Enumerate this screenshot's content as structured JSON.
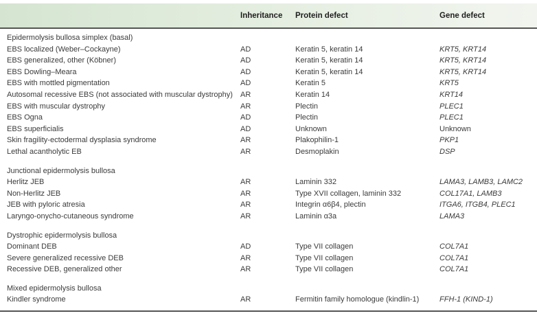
{
  "table": {
    "columns": [
      "",
      "Inheritance",
      "Protein defect",
      "Gene defect"
    ],
    "sections": [
      {
        "title": "Epidermolysis bullosa simplex (basal)",
        "rows": [
          {
            "name": "EBS localized (Weber–Cockayne)",
            "inheritance": "AD",
            "protein": "Keratin 5, keratin 14",
            "gene": "KRT5, KRT14",
            "gene_italic": true
          },
          {
            "name": "EBS generalized, other (Köbner)",
            "inheritance": "AD",
            "protein": "Keratin 5, keratin 14",
            "gene": "KRT5, KRT14",
            "gene_italic": true
          },
          {
            "name": "EBS Dowling–Meara",
            "inheritance": "AD",
            "protein": "Keratin 5, keratin 14",
            "gene": "KRT5, KRT14",
            "gene_italic": true
          },
          {
            "name": "EBS with mottled pigmentation",
            "inheritance": "AD",
            "protein": "Keratin 5",
            "gene": "KRT5",
            "gene_italic": true
          },
          {
            "name": "Autosomal recessive EBS (not associated with muscular dystrophy)",
            "inheritance": "AR",
            "protein": "Keratin 14",
            "gene": "KRT14",
            "gene_italic": true
          },
          {
            "name": "EBS with muscular dystrophy",
            "inheritance": "AR",
            "protein": "Plectin",
            "gene": "PLEC1",
            "gene_italic": true
          },
          {
            "name": "EBS Ogna",
            "inheritance": "AD",
            "protein": "Plectin",
            "gene": "PLEC1",
            "gene_italic": true
          },
          {
            "name": "EBS superficialis",
            "inheritance": "AD",
            "protein": "Unknown",
            "gene": "Unknown",
            "gene_italic": false
          },
          {
            "name": "Skin fragility-ectodermal dysplasia syndrome",
            "inheritance": "AR",
            "protein": "Plakophilin-1",
            "gene": "PKP1",
            "gene_italic": true
          },
          {
            "name": "Lethal acantholytic EB",
            "inheritance": "AR",
            "protein": "Desmoplakin",
            "gene": "DSP",
            "gene_italic": true
          }
        ]
      },
      {
        "title": "Junctional epidermolysis bullosa",
        "rows": [
          {
            "name": "Herlitz JEB",
            "inheritance": "AR",
            "protein": "Laminin 332",
            "gene": "LAMA3, LAMB3, LAMC2",
            "gene_italic": true
          },
          {
            "name": "Non-Herlitz JEB",
            "inheritance": "AR",
            "protein": "Type XVII collagen, laminin 332",
            "gene": "COL17A1, LAMB3",
            "gene_italic": true
          },
          {
            "name": "JEB with pyloric atresia",
            "inheritance": "AR",
            "protein": "Integrin α6β4, plectin",
            "gene": "ITGA6, ITGB4, PLEC1",
            "gene_italic": true
          },
          {
            "name": "Laryngo-onycho-cutaneous syndrome",
            "inheritance": "AR",
            "protein": "Laminin α3a",
            "gene": "LAMA3",
            "gene_italic": true
          }
        ]
      },
      {
        "title": "Dystrophic epidermolysis bullosa",
        "rows": [
          {
            "name": "Dominant DEB",
            "inheritance": "AD",
            "protein": "Type VII collagen",
            "gene": "COL7A1",
            "gene_italic": true
          },
          {
            "name": "Severe generalized recessive DEB",
            "inheritance": "AR",
            "protein": "Type VII collagen",
            "gene": "COL7A1",
            "gene_italic": true
          },
          {
            "name": "Recessive DEB, generalized other",
            "inheritance": "AR",
            "protein": "Type VII collagen",
            "gene": "COL7A1",
            "gene_italic": true
          }
        ]
      },
      {
        "title": "Mixed epidermolysis bullosa",
        "rows": [
          {
            "name": "Kindler syndrome",
            "inheritance": "AR",
            "protein": "Fermitin family homologue (kindlin-1)",
            "gene": "FFH-1 (KIND-1)",
            "gene_italic": true
          }
        ]
      }
    ]
  },
  "colors": {
    "header_gradient_left": "#d5e4d1",
    "header_gradient_right": "#f2f5ef",
    "rule": "#555555",
    "text": "#3a3a3a"
  }
}
